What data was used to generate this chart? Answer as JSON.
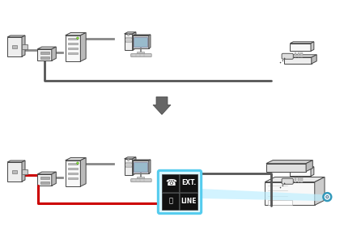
{
  "bg_color": "#ffffff",
  "line_gray": "#888888",
  "line_gray_dark": "#555555",
  "line_red": "#cc0000",
  "cyan_border": "#55ccee",
  "cyan_fill": "#ddf6ff",
  "black_box": "#111111",
  "text_white": "#ffffff",
  "device_fill": "#eeeeee",
  "device_fill2": "#f8f8f8",
  "device_side": "#bbbbbb",
  "device_top": "#dddddd",
  "device_stroke": "#444444",
  "shadow": "#999999",
  "blue_beam": "#aaeeff"
}
